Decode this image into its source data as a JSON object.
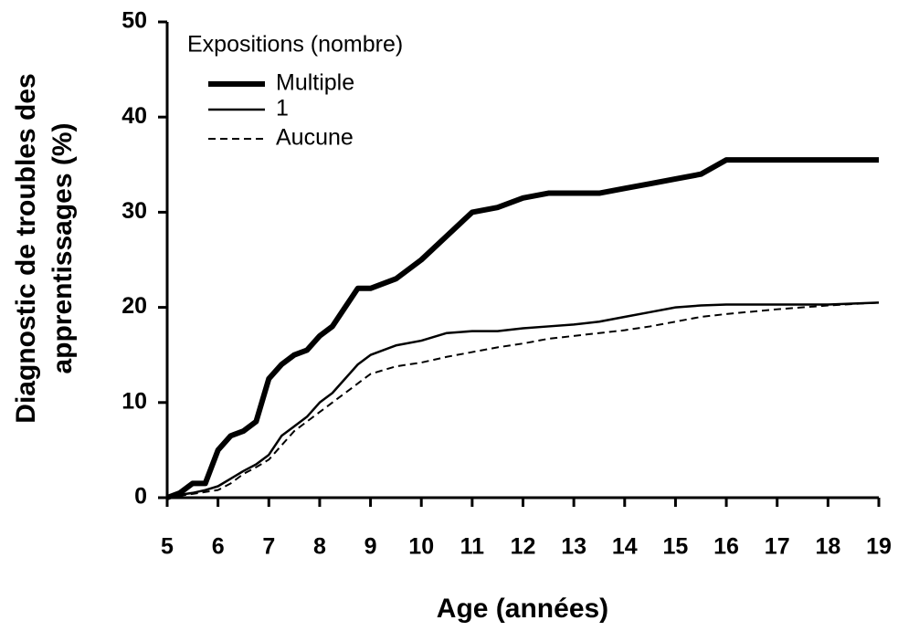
{
  "chart_data": {
    "type": "line",
    "xlabel": "Age (années)",
    "ylabel": [
      "Diagnostic de troubles des",
      "apprentissages (%)"
    ],
    "legend_title": "Expositions (nombre)",
    "legend": "upper left",
    "x": [
      5,
      5.25,
      5.5,
      5.75,
      6,
      6.25,
      6.5,
      6.75,
      7,
      7.25,
      7.5,
      7.75,
      8,
      8.25,
      8.5,
      8.75,
      9,
      9.5,
      10,
      10.5,
      11,
      11.5,
      12,
      12.5,
      13,
      13.5,
      14,
      14.5,
      15,
      15.5,
      16,
      17,
      18,
      19
    ],
    "series": [
      {
        "name": "Multiple",
        "color": "#000000",
        "width": 6,
        "dash": false,
        "values": [
          0,
          0.5,
          1.5,
          1.5,
          5,
          6.5,
          7,
          8,
          12.5,
          14,
          15,
          15.5,
          17,
          18,
          20,
          22,
          22,
          23,
          25,
          27.5,
          30,
          30.5,
          31.5,
          32,
          32,
          32,
          32.5,
          33,
          33.5,
          34,
          35.5,
          35.5,
          35.5,
          35.5
        ]
      },
      {
        "name": "1",
        "color": "#000000",
        "width": 2.5,
        "dash": false,
        "values": [
          0,
          0.3,
          0.5,
          0.8,
          1.2,
          2,
          2.8,
          3.5,
          4.5,
          6.5,
          7.5,
          8.5,
          10,
          11,
          12.5,
          14,
          15,
          16,
          16.5,
          17.3,
          17.5,
          17.5,
          17.8,
          18,
          18.2,
          18.5,
          19,
          19.5,
          20,
          20.2,
          20.3,
          20.3,
          20.3,
          20.5
        ]
      },
      {
        "name": "Aucune",
        "color": "#000000",
        "width": 2,
        "dash": true,
        "values": [
          0,
          0.2,
          0.4,
          0.6,
          0.8,
          1.5,
          2.5,
          3.2,
          4,
          5.5,
          7,
          8,
          9,
          10,
          11,
          12,
          13,
          13.8,
          14.2,
          14.8,
          15.3,
          15.8,
          16.2,
          16.7,
          17,
          17.3,
          17.6,
          18,
          18.5,
          19,
          19.3,
          19.8,
          20.2,
          20.5
        ]
      }
    ],
    "xlim": [
      5,
      19
    ],
    "ylim": [
      0,
      50
    ],
    "xticks": [
      5,
      6,
      7,
      8,
      9,
      10,
      11,
      12,
      13,
      14,
      15,
      16,
      17,
      18,
      19
    ],
    "yticks": [
      0,
      10,
      20,
      30,
      40,
      50
    ]
  }
}
